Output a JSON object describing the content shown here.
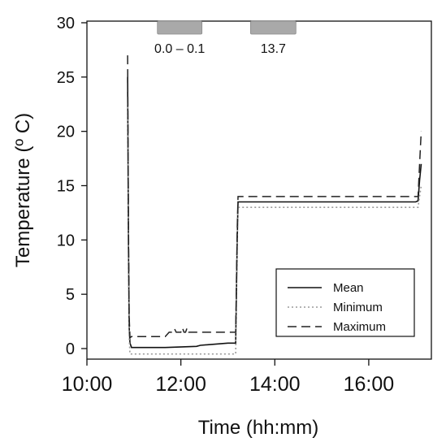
{
  "chart_data": {
    "type": "line",
    "xlabel": "Time (hh:mm)",
    "ylabel": "Temperature (º C)",
    "xlim": [
      600,
      1040
    ],
    "ylim": [
      0,
      30
    ],
    "x_ticks": [
      {
        "value": 600,
        "label": "10:00"
      },
      {
        "value": 720,
        "label": "12:00"
      },
      {
        "value": 840,
        "label": "14:00"
      },
      {
        "value": 960,
        "label": "16:00"
      }
    ],
    "y_ticks": [
      0,
      5,
      10,
      15,
      20,
      25,
      30
    ],
    "grid": false,
    "legend_position": "bottom-right",
    "exposure_bars": [
      {
        "start": 690,
        "end": 747,
        "label": "0.0 – 0.1",
        "color": "#a9a9a9"
      },
      {
        "start": 809,
        "end": 867,
        "label": "13.7",
        "color": "#a9a9a9"
      }
    ],
    "series": [
      {
        "name": "Mean",
        "style": "solid",
        "color": "#111111",
        "points": [
          [
            652,
            25
          ],
          [
            653,
            10
          ],
          [
            654,
            2
          ],
          [
            655,
            0.5
          ],
          [
            657,
            0.1
          ],
          [
            700,
            0.1
          ],
          [
            740,
            0.2
          ],
          [
            745,
            0.3
          ],
          [
            780,
            0.5
          ],
          [
            790,
            0.5
          ],
          [
            792,
            10
          ],
          [
            793,
            13.5
          ],
          [
            810,
            13.5
          ],
          [
            900,
            13.5
          ],
          [
            1020,
            13.5
          ],
          [
            1023,
            13.6
          ],
          [
            1025,
            15.5
          ],
          [
            1027,
            17
          ]
        ]
      },
      {
        "name": "Minimum",
        "style": "dotted",
        "color": "#9a9a9a",
        "points": [
          [
            652,
            23
          ],
          [
            653,
            8
          ],
          [
            654,
            1
          ],
          [
            655,
            -0.5
          ],
          [
            700,
            -0.5
          ],
          [
            790,
            -0.5
          ],
          [
            792,
            10
          ],
          [
            793,
            13
          ],
          [
            1020,
            13
          ],
          [
            1023,
            13
          ],
          [
            1025,
            14
          ],
          [
            1027,
            15
          ]
        ]
      },
      {
        "name": "Maximum",
        "style": "dashed",
        "color": "#222222",
        "points": [
          [
            652,
            27
          ],
          [
            653,
            12
          ],
          [
            654,
            3
          ],
          [
            655,
            1
          ],
          [
            657,
            1.1
          ],
          [
            680,
            1.1
          ],
          [
            700,
            1.1
          ],
          [
            705,
            1.5
          ],
          [
            710,
            1.5
          ],
          [
            712,
            1.8
          ],
          [
            714,
            1.5
          ],
          [
            720,
            1.5
          ],
          [
            722,
            1.9
          ],
          [
            724,
            1.5
          ],
          [
            726,
            1.5
          ],
          [
            728,
            1.9
          ],
          [
            730,
            1.5
          ],
          [
            790,
            1.5
          ],
          [
            792,
            11
          ],
          [
            793,
            14
          ],
          [
            1020,
            14
          ],
          [
            1023,
            14
          ],
          [
            1025,
            17
          ],
          [
            1027,
            20
          ]
        ]
      }
    ]
  }
}
